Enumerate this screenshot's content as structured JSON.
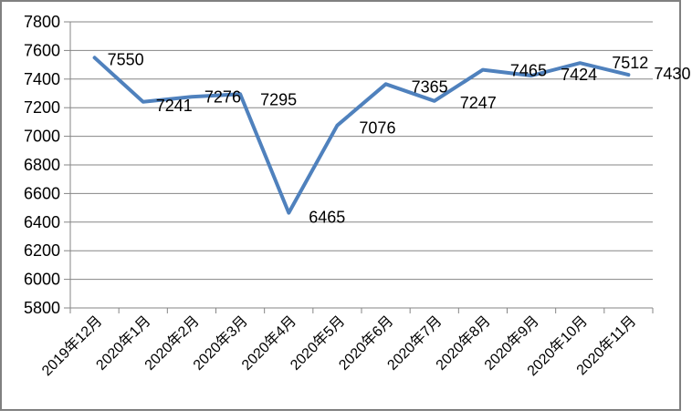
{
  "chart_data": {
    "type": "line",
    "title": "",
    "legend_position": "none",
    "grid": true,
    "categories": [
      "2019年12月",
      "2020年1月",
      "2020年2月",
      "2020年3月",
      "2020年4月",
      "2020年5月",
      "2020年6月",
      "2020年7月",
      "2020年8月",
      "2020年9月",
      "2020年10月",
      "2020年11月"
    ],
    "series": [
      {
        "name": "",
        "values": [
          7550,
          7241,
          7276,
          7295,
          6465,
          7076,
          7365,
          7247,
          7465,
          7424,
          7512,
          7430
        ],
        "data_labels": [
          "7550",
          "7241",
          "7276",
          "7295",
          "6465",
          "7076",
          "7365",
          "7247",
          "7465",
          "7424",
          "7512",
          "7430"
        ]
      }
    ],
    "xlabel": "",
    "ylabel": "",
    "ylim": [
      5800,
      7800
    ],
    "ytick_step": 200,
    "yticks": [
      5800,
      6000,
      6200,
      6400,
      6600,
      6800,
      7000,
      7200,
      7400,
      7600,
      7800
    ],
    "colors": {
      "series_line": "#4F81BD",
      "gridline": "#858585",
      "axis": "#858585",
      "frame_border": "#808080",
      "label_text": "#000000",
      "background": "#ffffff"
    }
  }
}
